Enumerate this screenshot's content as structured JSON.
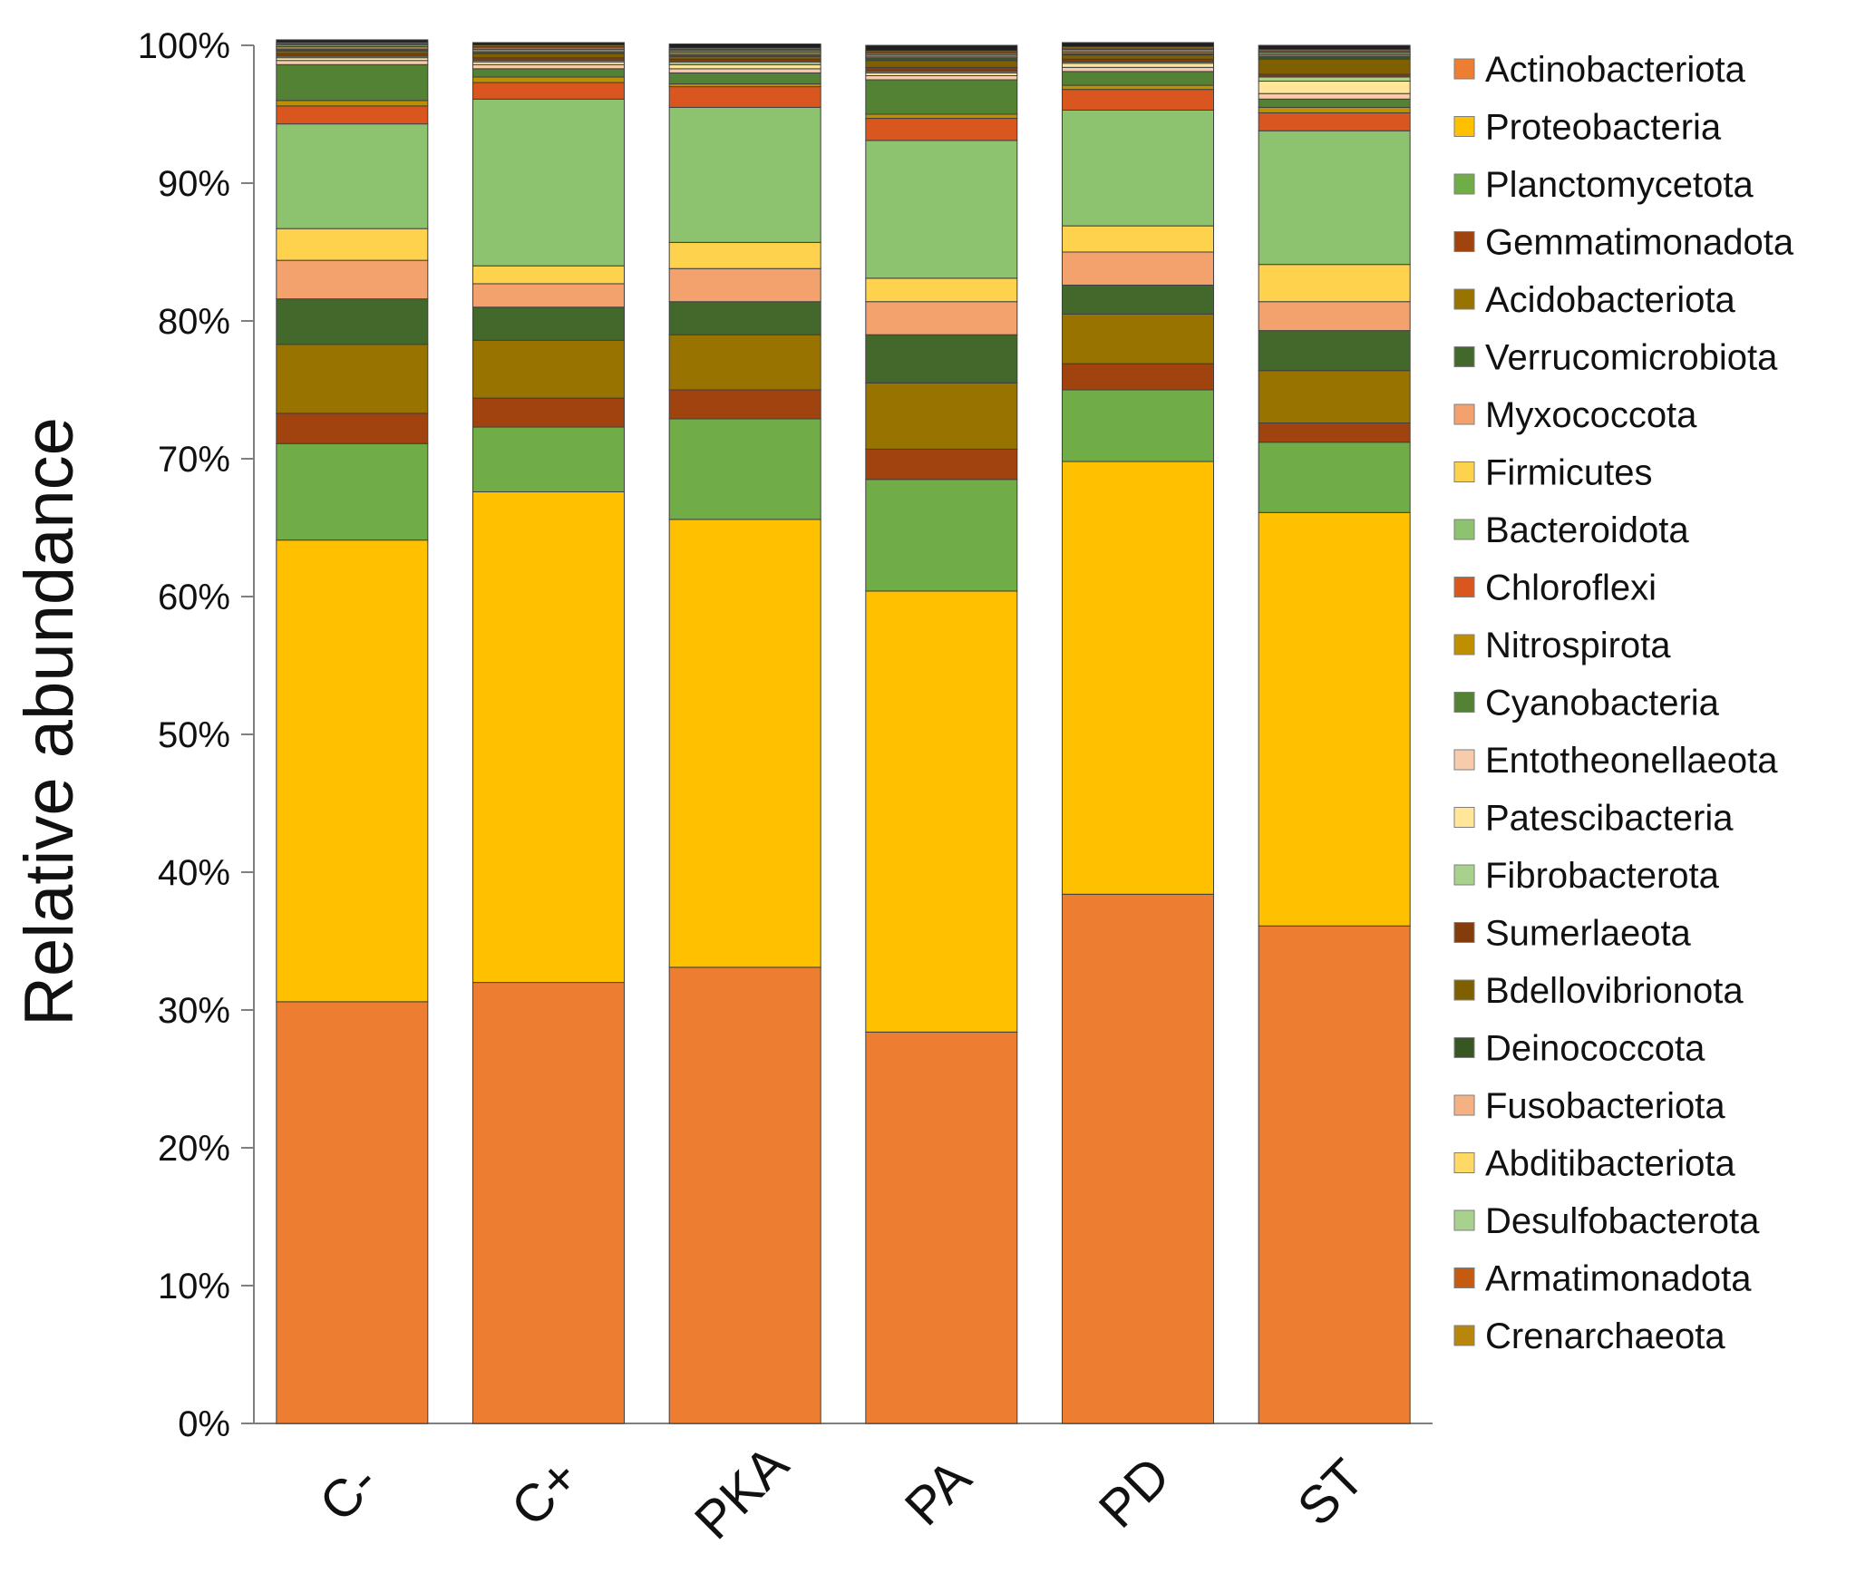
{
  "chart_data": {
    "type": "bar",
    "stacked": true,
    "percent": true,
    "title": "",
    "xlabel": "",
    "ylabel": "Relative abundance",
    "ylim": [
      0,
      100
    ],
    "y_ticks": [
      "0%",
      "10%",
      "20%",
      "30%",
      "40%",
      "50%",
      "60%",
      "70%",
      "80%",
      "90%",
      "100%"
    ],
    "legend_position": "right",
    "grid": false,
    "categories": [
      "C-",
      "C+",
      "PKA",
      "PA",
      "PD",
      "ST"
    ],
    "series": [
      {
        "name": "Actinobacteriota",
        "color": "#ED7D31",
        "values": [
          30.6,
          32.0,
          33.1,
          28.4,
          38.4,
          36.1
        ]
      },
      {
        "name": "Proteobacteria",
        "color": "#FFC000",
        "values": [
          33.5,
          35.6,
          32.5,
          32.0,
          31.4,
          30.0
        ]
      },
      {
        "name": "Planctomycetota",
        "color": "#70AD47",
        "values": [
          7.0,
          4.7,
          7.3,
          8.1,
          5.2,
          5.1
        ]
      },
      {
        "name": "Gemmatimonadota",
        "color": "#A0430F",
        "values": [
          2.2,
          2.1,
          2.1,
          2.2,
          1.9,
          1.4
        ]
      },
      {
        "name": "Acidobacteriota",
        "color": "#997300",
        "values": [
          5.0,
          4.2,
          4.0,
          4.8,
          3.6,
          3.8
        ]
      },
      {
        "name": "Verrucomicrobiota",
        "color": "#43682B",
        "values": [
          3.3,
          2.4,
          2.4,
          3.5,
          2.1,
          2.9
        ]
      },
      {
        "name": "Myxococcota",
        "color": "#F4A26D",
        "values": [
          2.8,
          1.7,
          2.4,
          2.4,
          2.4,
          2.1
        ]
      },
      {
        "name": "Firmicutes",
        "color": "#FFD24D",
        "values": [
          2.3,
          1.3,
          1.9,
          1.7,
          1.9,
          2.7
        ]
      },
      {
        "name": "Bacteroidota",
        "color": "#8DC26E",
        "values": [
          7.6,
          12.1,
          9.8,
          10.0,
          8.4,
          9.7
        ]
      },
      {
        "name": "Chloroflexi",
        "color": "#D9571F",
        "values": [
          1.3,
          1.2,
          1.5,
          1.6,
          1.5,
          1.3
        ]
      },
      {
        "name": "Nitrospirota",
        "color": "#BF8F00",
        "values": [
          0.4,
          0.4,
          0.2,
          0.3,
          0.3,
          0.4
        ]
      },
      {
        "name": "Cyanobacteria",
        "color": "#548235",
        "values": [
          2.6,
          0.6,
          0.8,
          2.5,
          1.0,
          0.6
        ]
      },
      {
        "name": "Entotheonellaeota",
        "color": "#F8CBAD",
        "values": [
          0.3,
          0.3,
          0.3,
          0.3,
          0.3,
          0.4
        ]
      },
      {
        "name": "Patescibacteria",
        "color": "#FFE699",
        "values": [
          0.2,
          0.2,
          0.3,
          0.2,
          0.3,
          0.9
        ]
      },
      {
        "name": "Fibrobacterota",
        "color": "#A9D18E",
        "values": [
          0.1,
          0.1,
          0.2,
          0.1,
          0.1,
          0.3
        ]
      },
      {
        "name": "Sumerlaeota",
        "color": "#843C0C",
        "values": [
          0.2,
          0.2,
          0.2,
          0.3,
          0.2,
          0.2
        ]
      },
      {
        "name": "Bdellovibrionota",
        "color": "#7F6000",
        "values": [
          0.2,
          0.3,
          0.2,
          0.5,
          0.3,
          1.1
        ]
      },
      {
        "name": "Deinococcota",
        "color": "#375623",
        "values": [
          0.1,
          0.1,
          0.1,
          0.2,
          0.1,
          0.2
        ]
      },
      {
        "name": "Fusobacteriota",
        "color": "#F4B183",
        "values": [
          0.1,
          0.1,
          0.1,
          0.1,
          0.1,
          0.1
        ]
      },
      {
        "name": "Abditibacteriota",
        "color": "#FFD966",
        "values": [
          0.1,
          0.1,
          0.1,
          0.1,
          0.1,
          0.1
        ]
      },
      {
        "name": "Desulfobacterota",
        "color": "#A9D18E",
        "values": [
          0.1,
          0.1,
          0.1,
          0.1,
          0.1,
          0.1
        ]
      },
      {
        "name": "Armatimonadota",
        "color": "#C55A11",
        "values": [
          0.1,
          0.1,
          0.1,
          0.1,
          0.1,
          0.1
        ]
      },
      {
        "name": "Crenarchaeota",
        "color": "#B8860B",
        "values": [
          0.1,
          0.1,
          0.1,
          0.1,
          0.1,
          0.1
        ]
      },
      {
        "name": "",
        "color": "#1F1F1F",
        "values": [
          0.2,
          0.2,
          0.3,
          0.4,
          0.3,
          0.3
        ]
      }
    ]
  }
}
